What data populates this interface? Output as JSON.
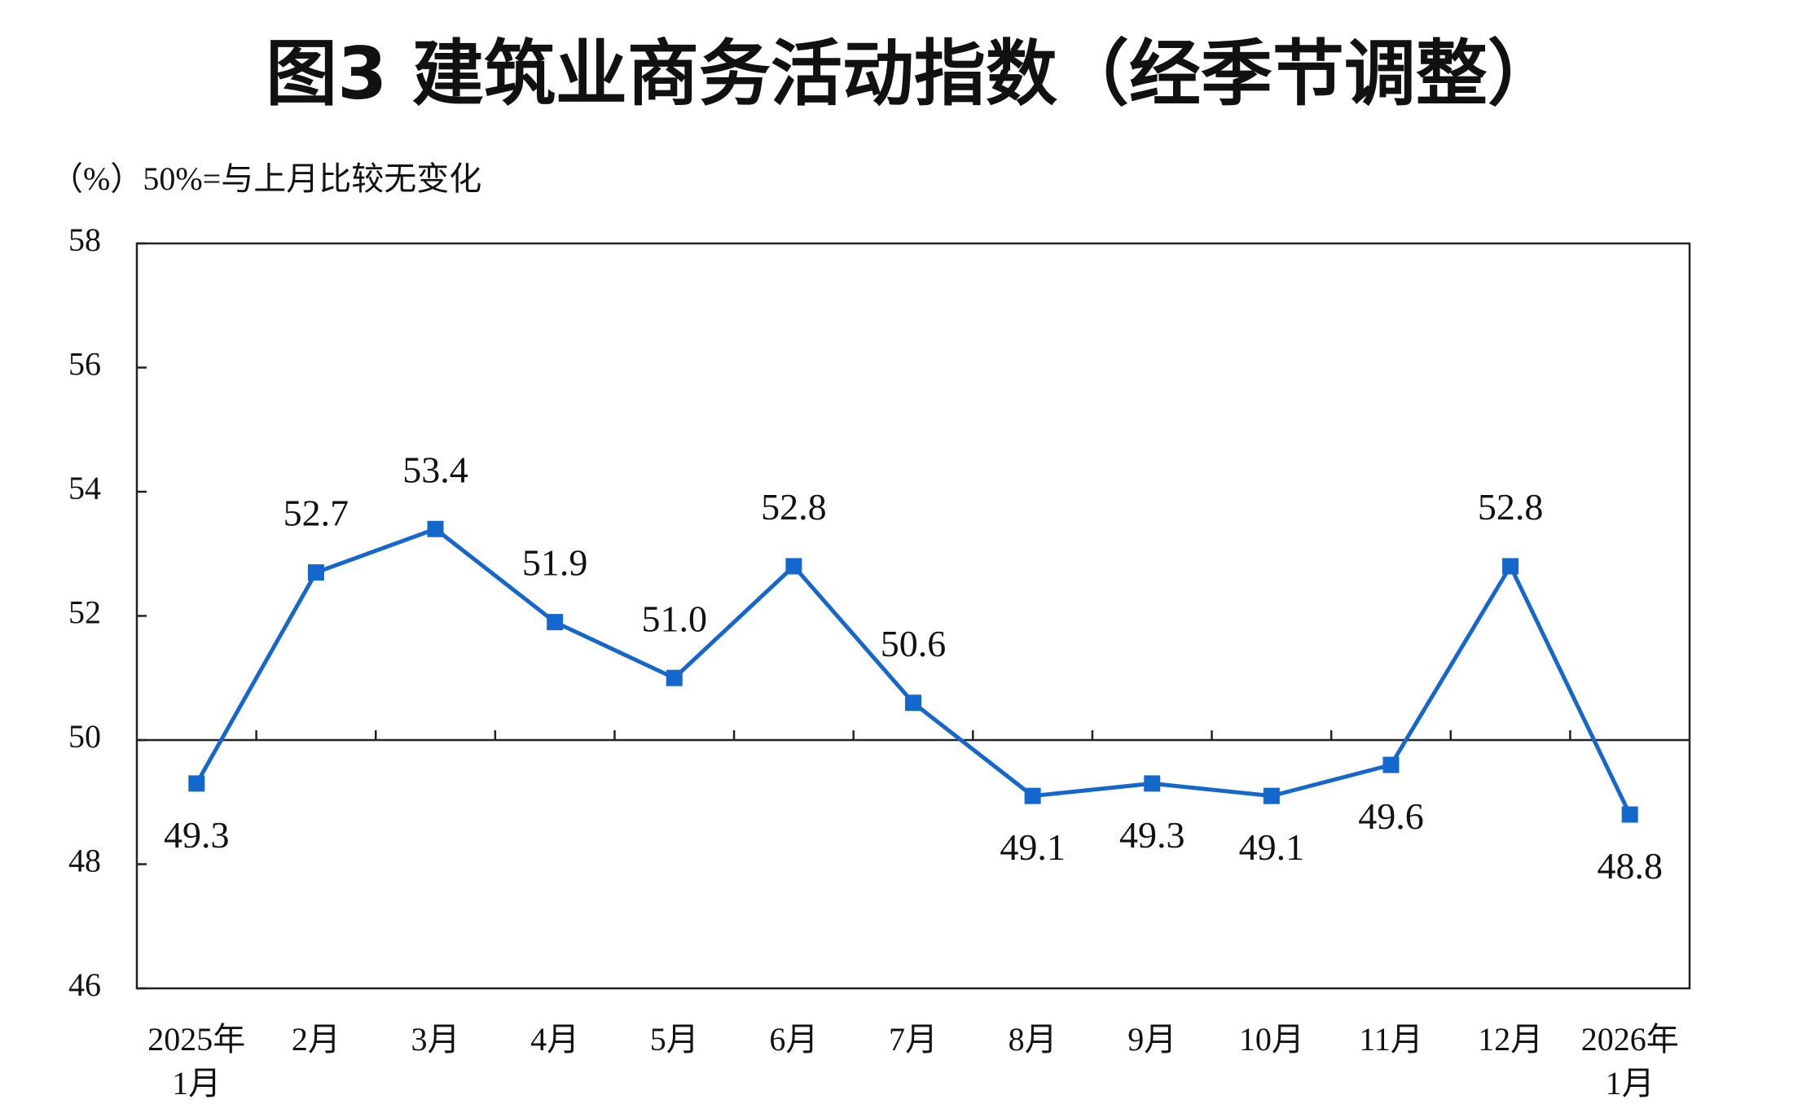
{
  "chart_data": {
    "type": "line",
    "title": "图3  建筑业商务活动指数（经季节调整）",
    "subtitle": "（%）50%=与上月比较无变化",
    "categories": [
      "2025年\n1月",
      "2月",
      "3月",
      "4月",
      "5月",
      "6月",
      "7月",
      "8月",
      "9月",
      "10月",
      "11月",
      "12月",
      "2026年\n1月"
    ],
    "series": [
      {
        "color": "#1467cc",
        "values": [
          49.3,
          52.7,
          53.4,
          51.9,
          51.0,
          52.8,
          50.6,
          49.1,
          49.3,
          49.1,
          49.6,
          52.8,
          48.8
        ],
        "value_labels": [
          "49.3",
          "52.7",
          "53.4",
          "51.9",
          "51.0",
          "52.8",
          "50.6",
          "49.1",
          "49.3",
          "49.1",
          "49.6",
          "52.8",
          "48.8"
        ]
      }
    ],
    "ylim": [
      46,
      58
    ],
    "yticks": [
      46,
      48,
      50,
      52,
      54,
      56,
      58
    ],
    "baseline": 50,
    "grid": false
  }
}
